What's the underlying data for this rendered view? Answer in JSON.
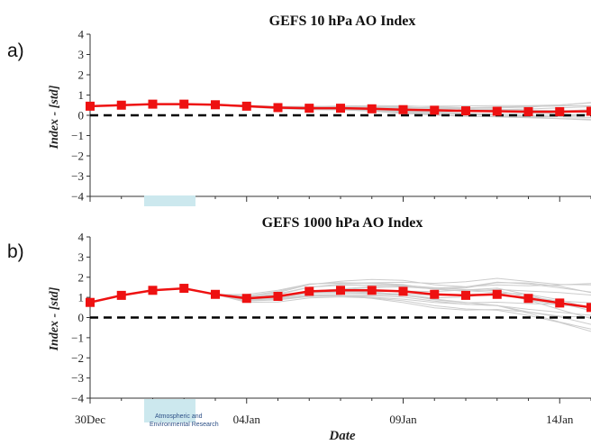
{
  "watermark": {
    "line1": "Atmospheric and",
    "line2": "Environmental Research",
    "color": "#cce8ee"
  },
  "x_axis": {
    "label": "Date",
    "tick_labels": [
      "30Dec",
      "04Jan",
      "09Jan",
      "14Jan"
    ],
    "tick_positions": [
      0,
      5,
      10,
      15
    ],
    "range": [
      0,
      16
    ]
  },
  "colors": {
    "mean": "#ee1111",
    "members": "#cccccc",
    "zero_line": "#000000"
  },
  "chart_data": [
    {
      "type": "line",
      "panel_label": "a)",
      "title": "GEFS 10 hPa AO Index",
      "xlabel": "",
      "ylabel": "Index - [std]",
      "ylim": [
        -4,
        4
      ],
      "yticks": [
        -4,
        -3,
        -2,
        -1,
        0,
        1,
        2,
        3,
        4
      ],
      "x": [
        0,
        1,
        2,
        3,
        4,
        5,
        6,
        7,
        8,
        9,
        10,
        11,
        12,
        13,
        14,
        15,
        16
      ],
      "series": [
        {
          "values": [
            0.45,
            0.5,
            0.55,
            0.55,
            0.52,
            0.45,
            0.38,
            0.35,
            0.35,
            0.32,
            0.28,
            0.25,
            0.22,
            0.2,
            0.18,
            0.18,
            0.2
          ]
        }
      ],
      "ensemble_spread": [
        0,
        0,
        0,
        0,
        0,
        0.03,
        0.05,
        0.08,
        0.1,
        0.13,
        0.17,
        0.2,
        0.24,
        0.28,
        0.32,
        0.36,
        0.4
      ],
      "zero_line": 0
    },
    {
      "type": "line",
      "panel_label": "b)",
      "title": "GEFS 1000 hPa AO Index",
      "xlabel": "Date",
      "ylabel": "Index - [std]",
      "ylim": [
        -4,
        4
      ],
      "yticks": [
        -4,
        -3,
        -2,
        -1,
        0,
        1,
        2,
        3,
        4
      ],
      "x": [
        0,
        1,
        2,
        3,
        4,
        5,
        6,
        7,
        8,
        9,
        10,
        11,
        12,
        13,
        14,
        15,
        16
      ],
      "series": [
        {
          "values": [
            0.75,
            1.1,
            1.35,
            1.45,
            1.15,
            0.95,
            1.05,
            1.3,
            1.35,
            1.35,
            1.3,
            1.15,
            1.1,
            1.15,
            0.95,
            0.72,
            0.5
          ]
        }
      ],
      "ensemble_spread": [
        0,
        0,
        0,
        0,
        0,
        0.15,
        0.25,
        0.35,
        0.4,
        0.45,
        0.5,
        0.55,
        0.65,
        0.8,
        0.9,
        1.0,
        1.1
      ],
      "zero_line": 0
    }
  ]
}
